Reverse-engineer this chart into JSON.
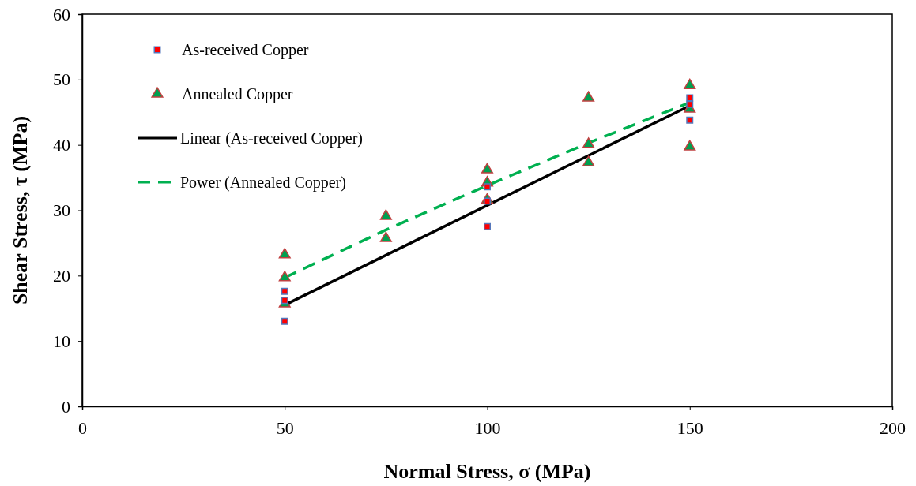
{
  "chart_data": {
    "type": "scatter",
    "xlabel": "Normal Stress, σ  (MPa)",
    "ylabel": "Shear Stress,  τ  (MPa)",
    "xlim": [
      0,
      200
    ],
    "xticks": [
      0,
      50,
      100,
      150,
      200
    ],
    "ylim": [
      0,
      60
    ],
    "yticks": [
      0,
      10,
      20,
      30,
      40,
      50,
      60
    ],
    "grid": false,
    "legend": "top left",
    "series": [
      {
        "name": "As-received Copper",
        "marker": "square",
        "color": "#ff0000",
        "x": [
          50,
          50,
          50,
          100,
          100,
          100,
          150,
          150,
          150
        ],
        "values": [
          17.6,
          16.2,
          13.0,
          33.6,
          31.4,
          27.5,
          47.2,
          46.2,
          43.8
        ]
      },
      {
        "name": "Annealed Copper",
        "marker": "triangle",
        "color": "#00a050",
        "x": [
          50,
          50,
          50,
          75,
          75,
          100,
          100,
          100,
          125,
          125,
          125,
          150,
          150,
          150
        ],
        "values": [
          23.2,
          19.7,
          15.7,
          29.1,
          25.7,
          36.2,
          34.2,
          31.6,
          47.2,
          40.1,
          37.3,
          49.1,
          45.5,
          39.7
        ]
      },
      {
        "name": "Linear (As-received Copper)",
        "type": "line",
        "marker": "none",
        "line_style": "solid",
        "color": "#000000",
        "x": [
          50,
          150
        ],
        "values": [
          15.5,
          46.0
        ]
      },
      {
        "name": "Power (Annealed Copper)",
        "type": "line",
        "marker": "none",
        "line_style": "dashed",
        "color": "#00b050",
        "x": [
          50,
          75,
          100,
          125,
          150
        ],
        "values": [
          19.7,
          27.0,
          33.8,
          40.3,
          46.5
        ]
      }
    ]
  }
}
